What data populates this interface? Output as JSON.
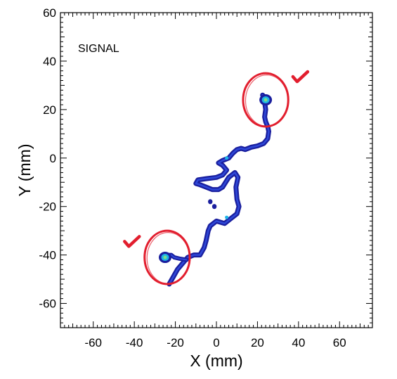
{
  "chart_data": {
    "type": "heatmap",
    "title": "",
    "annotation": "SIGNAL",
    "xlabel": "X (mm)",
    "ylabel": "Y (mm)",
    "xlim": [
      -76,
      76
    ],
    "ylim": [
      -70,
      60
    ],
    "xticks": [
      -60,
      -40,
      -20,
      0,
      20,
      40,
      60
    ],
    "yticks": [
      -60,
      -40,
      -20,
      0,
      20,
      40,
      60
    ],
    "colors": {
      "track_outer": "#1a1f9e",
      "track_inner": "#2f48d8",
      "hotspot_mid": "#1fb5e6",
      "hotspot_core": "#7be08a",
      "marker": "#e21e2e"
    },
    "track": [
      [
        -23,
        -52
      ],
      [
        -21,
        -49
      ],
      [
        -19,
        -46
      ],
      [
        -17,
        -44
      ],
      [
        -15.5,
        -42.5
      ],
      [
        -14,
        -41
      ],
      [
        -11,
        -40
      ],
      [
        -8,
        -40
      ],
      [
        -6,
        -37
      ],
      [
        -5,
        -34
      ],
      [
        -4,
        -30
      ],
      [
        -3,
        -28
      ],
      [
        0,
        -26
      ],
      [
        4,
        -27
      ],
      [
        7,
        -25
      ],
      [
        10,
        -23
      ],
      [
        11,
        -20
      ],
      [
        10,
        -17
      ],
      [
        9.5,
        -12
      ],
      [
        10.5,
        -8
      ],
      [
        9,
        -6
      ],
      [
        6,
        -8
      ],
      [
        3,
        -12
      ],
      [
        1,
        -13
      ],
      [
        -2,
        -13
      ],
      [
        -5,
        -12
      ],
      [
        -8,
        -11
      ],
      [
        -10,
        -10.5
      ],
      [
        -9,
        -9
      ],
      [
        -5,
        -8.5
      ],
      [
        0,
        -8
      ],
      [
        3,
        -7
      ],
      [
        5,
        -5
      ],
      [
        3,
        -3
      ],
      [
        1,
        -2
      ],
      [
        3,
        -1
      ],
      [
        6,
        0
      ],
      [
        8,
        2
      ],
      [
        10,
        3.5
      ],
      [
        12,
        4
      ],
      [
        14,
        3.5
      ],
      [
        17,
        4.5
      ],
      [
        20,
        5
      ],
      [
        23,
        6
      ],
      [
        25,
        8
      ],
      [
        25.5,
        11
      ],
      [
        25,
        13
      ],
      [
        24,
        15
      ],
      [
        23.5,
        17
      ],
      [
        24,
        20
      ],
      [
        23.5,
        23
      ],
      [
        23.5,
        25
      ],
      [
        22.5,
        26
      ]
    ],
    "branch": [
      [
        -14.5,
        -42
      ],
      [
        -18,
        -41.5
      ],
      [
        -20.5,
        -41
      ],
      [
        -22,
        -40
      ],
      [
        -24.5,
        -40
      ],
      [
        -26.5,
        -41
      ]
    ],
    "blobs": [
      [
        -3,
        -18
      ],
      [
        -1,
        -20
      ]
    ],
    "hotspots": [
      {
        "x": 24,
        "y": 24
      },
      {
        "x": -25,
        "y": -41
      },
      {
        "x": 5,
        "y": -24.5
      },
      {
        "x": 5,
        "y": 0
      }
    ],
    "circles": [
      {
        "x": 24,
        "y": 24,
        "r": 11
      },
      {
        "x": -24,
        "y": -41,
        "r": 11
      }
    ],
    "checkmarks": [
      {
        "x": 40,
        "y": 33
      },
      {
        "x": -42,
        "y": -35
      }
    ]
  }
}
